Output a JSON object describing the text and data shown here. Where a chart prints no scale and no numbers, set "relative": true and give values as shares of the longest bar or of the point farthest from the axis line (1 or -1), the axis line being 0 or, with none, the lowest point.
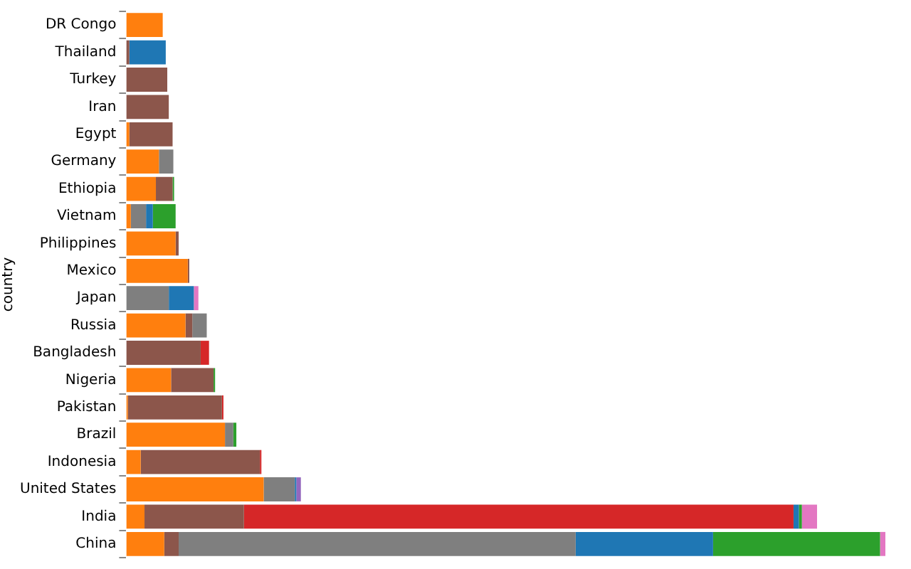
{
  "chart_data": {
    "type": "bar",
    "orientation": "horizontal",
    "stacked": true,
    "relative": true,
    "ylabel": "country",
    "legend": false,
    "categories": [
      "DR Congo",
      "Thailand",
      "Turkey",
      "Iran",
      "Egypt",
      "Germany",
      "Ethiopia",
      "Vietnam",
      "Philippines",
      "Mexico",
      "Japan",
      "Russia",
      "Bangladesh",
      "Nigeria",
      "Pakistan",
      "Brazil",
      "Indonesia",
      "United States",
      "India",
      "China"
    ],
    "series": [
      {
        "color": "#ff7f0e",
        "values": [
          0.048,
          0,
          0,
          0,
          0.004,
          0.043,
          0.039,
          0.006,
          0.065,
          0.081,
          0,
          0.078,
          0,
          0.059,
          0.002,
          0.13,
          0.019,
          0.181,
          0.024,
          0.05
        ]
      },
      {
        "color": "#8c564b",
        "values": [
          0,
          0.004,
          0.054,
          0.056,
          0.057,
          0,
          0.022,
          0,
          0.004,
          0.002,
          0,
          0.009,
          0.098,
          0.056,
          0.124,
          0,
          0.157,
          0,
          0.131,
          0.019
        ]
      },
      {
        "color": "#7f7f7f",
        "values": [
          0,
          0,
          0,
          0,
          0,
          0.019,
          0,
          0.02,
          0,
          0,
          0.056,
          0.019,
          0,
          0,
          0,
          0.011,
          0,
          0.041,
          0,
          0.523
        ]
      },
      {
        "color": "#d62728",
        "values": [
          0,
          0,
          0,
          0,
          0,
          0,
          0,
          0,
          0,
          0,
          0,
          0,
          0.011,
          0,
          0.002,
          0,
          0.002,
          0,
          0.724,
          0
        ]
      },
      {
        "color": "#1f77b4",
        "values": [
          0,
          0.048,
          0,
          0,
          0,
          0,
          0,
          0.009,
          0,
          0,
          0.033,
          0,
          0,
          0,
          0,
          0,
          0,
          0.002,
          0.007,
          0.181
        ]
      },
      {
        "color": "#2ca02c",
        "values": [
          0,
          0,
          0,
          0,
          0,
          0,
          0.002,
          0.03,
          0,
          0,
          0,
          0,
          0,
          0.002,
          0,
          0.004,
          0,
          0,
          0.004,
          0.22
        ]
      },
      {
        "color": "#9467bd",
        "values": [
          0,
          0,
          0,
          0,
          0,
          0,
          0,
          0,
          0,
          0,
          0,
          0,
          0,
          0,
          0,
          0,
          0,
          0.006,
          0,
          0
        ]
      },
      {
        "color": "#e377c2",
        "values": [
          0,
          0,
          0,
          0,
          0,
          0,
          0,
          0,
          0,
          0,
          0.006,
          0,
          0,
          0,
          0,
          0,
          0,
          0,
          0.02,
          0.007
        ]
      }
    ]
  }
}
